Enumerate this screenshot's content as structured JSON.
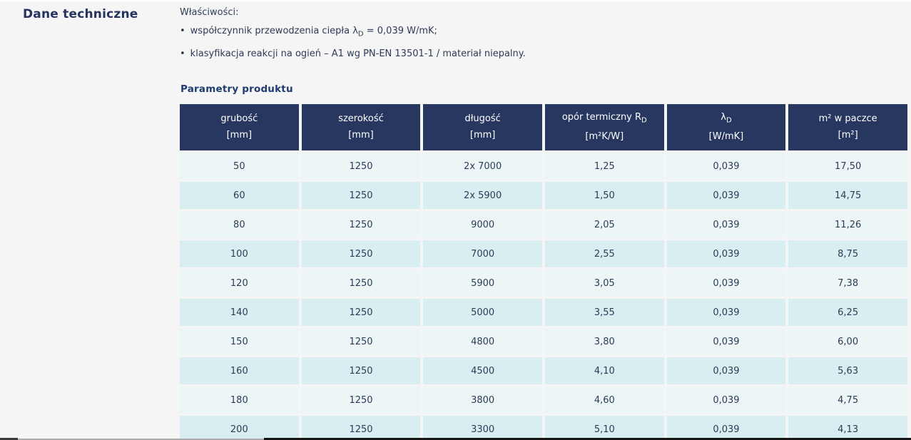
{
  "section_title": "Dane techniczne",
  "properties": {
    "heading": "Właściwości:",
    "bullet_glyph": "•",
    "bullet1": {
      "pre": "współczynnik przewodzenia ciepła λ",
      "sub": "D",
      "post": " = 0,039 W/mK;"
    },
    "bullet2": "klasyfikacja reakcji na ogień – A1 wg PN-EN 13501-1 / materiał niepalny."
  },
  "table": {
    "title": "Parametry produktu",
    "columns": [
      {
        "line1": "grubość",
        "sub": "",
        "line2": "[mm]"
      },
      {
        "line1": "szerokość",
        "sub": "",
        "line2": "[mm]"
      },
      {
        "line1": "długość",
        "sub": "",
        "line2": "[mm]"
      },
      {
        "line1": "opór termiczny R",
        "sub": "D",
        "line2": "[m²K/W]"
      },
      {
        "line1": "λ",
        "sub": "D",
        "line2": "[W/mK]"
      },
      {
        "line1": "m² w paczce",
        "sub": "",
        "line2": "[m²]"
      }
    ],
    "rows": [
      [
        "50",
        "1250",
        "2x 7000",
        "1,25",
        "0,039",
        "17,50"
      ],
      [
        "60",
        "1250",
        "2x 5900",
        "1,50",
        "0,039",
        "14,75"
      ],
      [
        "80",
        "1250",
        "9000",
        "2,05",
        "0,039",
        "11,26"
      ],
      [
        "100",
        "1250",
        "7000",
        "2,55",
        "0,039",
        "8,75"
      ],
      [
        "120",
        "1250",
        "5900",
        "3,05",
        "0,039",
        "7,38"
      ],
      [
        "140",
        "1250",
        "5000",
        "3,55",
        "0,039",
        "6,25"
      ],
      [
        "150",
        "1250",
        "4800",
        "3,80",
        "0,039",
        "6,00"
      ],
      [
        "160",
        "1250",
        "4500",
        "4,10",
        "0,039",
        "5,63"
      ],
      [
        "180",
        "1250",
        "3800",
        "4,60",
        "0,039",
        "4,75"
      ],
      [
        "200",
        "1250",
        "3300",
        "5,10",
        "0,039",
        "4,13"
      ]
    ]
  },
  "colors": {
    "page_background": "#f5f5f5",
    "header_navy": "#283760",
    "row_light": "#edf6f7",
    "row_dark": "#d9eef0",
    "text_navy": "#2e3b58",
    "title_navy": "#24335f"
  }
}
